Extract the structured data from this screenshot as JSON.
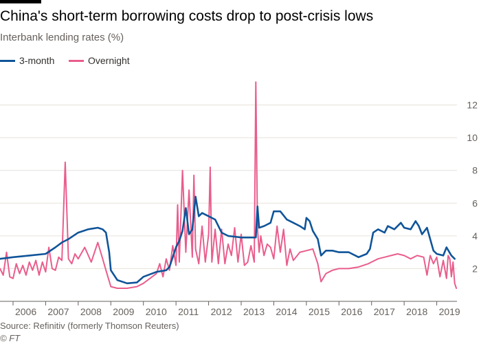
{
  "header": {
    "title": "China's short-term borrowing costs drop to post-crisis lows",
    "subtitle": "Interbank lending rates (%)"
  },
  "footer": {
    "source": "Source: Refinitiv (formerly Thomson Reuters)",
    "credit": "© FT"
  },
  "colors": {
    "three_month": "#0f5499",
    "overnight": "#e95d8c",
    "grid": "#e6e1da",
    "axis": "#66605c",
    "text": "#33302e"
  },
  "chart_data": {
    "type": "line",
    "title": "China's short-term borrowing costs drop to post-crisis lows",
    "ylabel": "Interbank lending rates (%)",
    "xlabel": "",
    "xlim": [
      2005.6,
      2019.62
    ],
    "ylim": [
      0,
      14
    ],
    "y_ticks": [
      2,
      4,
      6,
      8,
      10,
      12
    ],
    "x_ticks": [
      2006,
      2007,
      2008,
      2009,
      2010,
      2011,
      2012,
      2013,
      2014,
      2015,
      2016,
      2017,
      2018,
      2019
    ],
    "legend_position": "top-left",
    "grid": true,
    "series": [
      {
        "name": "3-month",
        "color": "#0f5499",
        "x": [
          2005.6,
          2006.0,
          2006.5,
          2007.0,
          2007.3,
          2007.5,
          2007.7,
          2008.0,
          2008.3,
          2008.6,
          2008.75,
          2008.85,
          2008.95,
          2009.0,
          2009.2,
          2009.5,
          2009.8,
          2010.0,
          2010.4,
          2010.7,
          2010.8,
          2010.9,
          2011.0,
          2011.1,
          2011.2,
          2011.3,
          2011.4,
          2011.5,
          2011.6,
          2011.7,
          2011.8,
          2012.0,
          2012.2,
          2012.4,
          2012.6,
          2012.8,
          2013.0,
          2013.2,
          2013.45,
          2013.5,
          2013.55,
          2013.7,
          2013.9,
          2014.0,
          2014.2,
          2014.4,
          2014.6,
          2014.8,
          2014.95,
          2015.0,
          2015.1,
          2015.2,
          2015.35,
          2015.45,
          2015.6,
          2015.8,
          2016.0,
          2016.3,
          2016.6,
          2016.85,
          2016.95,
          2017.05,
          2017.2,
          2017.4,
          2017.5,
          2017.7,
          2017.9,
          2018.0,
          2018.2,
          2018.35,
          2018.45,
          2018.55,
          2018.7,
          2018.9,
          2019.0,
          2019.2,
          2019.3,
          2019.45,
          2019.55
        ],
        "values": [
          2.6,
          2.7,
          2.8,
          2.9,
          3.3,
          3.6,
          3.8,
          4.2,
          4.4,
          4.5,
          4.4,
          4.2,
          3.0,
          1.9,
          1.3,
          1.1,
          1.15,
          1.5,
          1.8,
          1.9,
          2.1,
          2.7,
          3.3,
          3.7,
          4.3,
          5.7,
          4.1,
          4.4,
          6.4,
          5.2,
          5.4,
          5.2,
          5.0,
          4.2,
          4.0,
          3.95,
          3.9,
          3.9,
          3.9,
          5.8,
          4.5,
          4.6,
          4.8,
          5.5,
          5.5,
          5.0,
          4.8,
          4.6,
          4.4,
          5.1,
          4.9,
          4.3,
          3.8,
          2.8,
          3.1,
          3.1,
          3.0,
          3.0,
          2.7,
          2.9,
          3.2,
          4.2,
          4.4,
          4.2,
          4.6,
          4.4,
          4.8,
          4.5,
          4.4,
          4.9,
          4.6,
          4.1,
          4.5,
          3.1,
          2.9,
          2.8,
          3.3,
          2.8,
          2.6
        ]
      },
      {
        "name": "Overnight",
        "color": "#e95d8c",
        "x": [
          2005.6,
          2005.7,
          2005.8,
          2005.9,
          2006.0,
          2006.1,
          2006.2,
          2006.3,
          2006.4,
          2006.5,
          2006.6,
          2006.7,
          2006.8,
          2006.9,
          2007.0,
          2007.1,
          2007.2,
          2007.3,
          2007.4,
          2007.5,
          2007.6,
          2007.7,
          2007.8,
          2007.9,
          2008.0,
          2008.2,
          2008.4,
          2008.6,
          2008.75,
          2008.85,
          2009.0,
          2009.2,
          2009.5,
          2009.8,
          2010.0,
          2010.2,
          2010.4,
          2010.5,
          2010.6,
          2010.7,
          2010.8,
          2010.9,
          2011.0,
          2011.05,
          2011.1,
          2011.2,
          2011.3,
          2011.4,
          2011.5,
          2011.55,
          2011.6,
          2011.7,
          2011.8,
          2011.9,
          2012.0,
          2012.05,
          2012.1,
          2012.2,
          2012.3,
          2012.4,
          2012.5,
          2012.6,
          2012.7,
          2012.8,
          2012.9,
          2013.0,
          2013.1,
          2013.2,
          2013.3,
          2013.4,
          2013.45,
          2013.5,
          2013.55,
          2013.6,
          2013.7,
          2013.8,
          2013.9,
          2014.0,
          2014.1,
          2014.2,
          2014.3,
          2014.4,
          2014.5,
          2014.6,
          2014.8,
          2015.0,
          2015.2,
          2015.35,
          2015.45,
          2015.6,
          2015.8,
          2016.0,
          2016.3,
          2016.6,
          2016.9,
          2017.0,
          2017.2,
          2017.4,
          2017.6,
          2017.8,
          2018.0,
          2018.2,
          2018.4,
          2018.6,
          2018.7,
          2018.8,
          2018.9,
          2019.0,
          2019.1,
          2019.2,
          2019.3,
          2019.35,
          2019.4,
          2019.45,
          2019.5,
          2019.55,
          2019.6
        ],
        "values": [
          2.0,
          1.6,
          3.0,
          1.5,
          1.4,
          2.3,
          1.7,
          2.2,
          1.6,
          2.4,
          1.9,
          2.5,
          1.6,
          2.4,
          1.8,
          3.3,
          2.0,
          1.9,
          2.7,
          2.5,
          8.5,
          2.6,
          2.3,
          2.9,
          2.6,
          3.3,
          2.4,
          3.6,
          2.6,
          1.9,
          0.9,
          0.8,
          0.8,
          0.9,
          1.1,
          1.4,
          1.7,
          2.3,
          1.5,
          2.6,
          1.9,
          3.4,
          2.2,
          5.9,
          2.4,
          8.0,
          3.0,
          6.8,
          2.7,
          7.7,
          3.2,
          2.3,
          4.6,
          2.4,
          4.1,
          8.2,
          2.4,
          4.4,
          2.3,
          4.4,
          2.3,
          3.5,
          2.8,
          4.5,
          2.4,
          4.1,
          2.2,
          2.4,
          3.4,
          2.4,
          13.4,
          4.5,
          3.0,
          4.0,
          2.8,
          3.5,
          3.3,
          2.6,
          4.6,
          3.0,
          4.4,
          2.2,
          3.2,
          2.5,
          3.0,
          3.1,
          3.2,
          2.3,
          1.2,
          1.7,
          1.9,
          2.0,
          2.0,
          2.1,
          2.3,
          2.4,
          2.6,
          2.7,
          2.8,
          2.9,
          2.8,
          2.6,
          2.8,
          2.7,
          1.6,
          2.8,
          2.3,
          2.7,
          1.5,
          2.5,
          1.4,
          2.8,
          2.6,
          1.5,
          2.4,
          1.1,
          0.8
        ]
      }
    ]
  }
}
